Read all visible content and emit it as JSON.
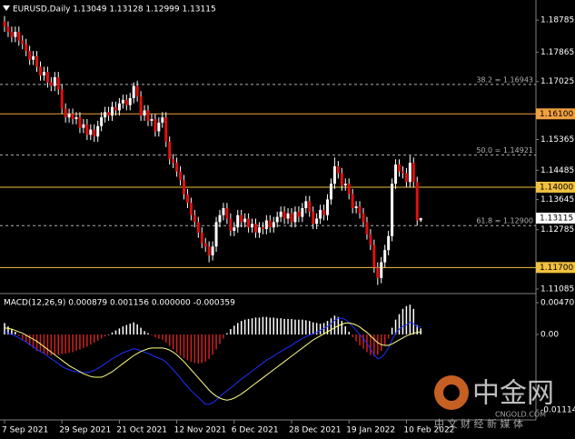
{
  "chart_data": [
    {
      "type": "candlestick",
      "header": "EURUSD,Daily  1.13049 1.13128 1.12999 1.13115",
      "ylim": [
        1.1098,
        1.1936
      ],
      "yticks": [
        1.18785,
        1.17865,
        1.17025,
        1.15365,
        1.14485,
        1.13645,
        1.12785,
        1.11085
      ],
      "up_color": "#ffffff",
      "down_color": "#e01010",
      "wick_color": "#ffffff",
      "categories": [
        "7 Sep 2021",
        null,
        null,
        null,
        null,
        null,
        null,
        null,
        null,
        null,
        null,
        null,
        null,
        null,
        null,
        null,
        "29 Sep 2021",
        null,
        null,
        null,
        null,
        null,
        null,
        null,
        null,
        null,
        null,
        null,
        null,
        null,
        null,
        null,
        "21 Oct 2021",
        null,
        null,
        null,
        null,
        null,
        null,
        null,
        null,
        null,
        null,
        null,
        null,
        null,
        null,
        null,
        "12 Nov 2021",
        null,
        null,
        null,
        null,
        null,
        null,
        null,
        null,
        null,
        null,
        null,
        null,
        null,
        null,
        null,
        "6 Dec 2021",
        null,
        null,
        null,
        null,
        null,
        null,
        null,
        null,
        null,
        null,
        null,
        null,
        null,
        null,
        null,
        "28 Dec 2021",
        null,
        null,
        null,
        null,
        null,
        null,
        null,
        null,
        null,
        null,
        null,
        null,
        null,
        null,
        null,
        "19 Jan 2022",
        null,
        null,
        null,
        null,
        null,
        null,
        null,
        null,
        null,
        null,
        null,
        null,
        null,
        null,
        null,
        "10 Feb 2022",
        null,
        null,
        null,
        null
      ],
      "open": [
        1.1875,
        1.186,
        1.1845,
        1.183,
        1.1845,
        1.182,
        1.181,
        1.179,
        1.1765,
        1.1775,
        1.1745,
        1.172,
        1.173,
        1.17,
        1.169,
        1.1715,
        1.168,
        1.1625,
        1.16,
        1.161,
        1.1595,
        1.16,
        1.157,
        1.158,
        1.155,
        1.1565,
        1.1545,
        1.1575,
        1.16,
        1.1615,
        1.1605,
        1.163,
        1.162,
        1.164,
        1.165,
        1.1635,
        1.1655,
        1.169,
        1.166,
        1.1605,
        1.162,
        1.159,
        1.1595,
        1.156,
        1.1585,
        1.16,
        1.153,
        1.148,
        1.147,
        1.1445,
        1.142,
        1.138,
        1.1355,
        1.132,
        1.13,
        1.127,
        1.124,
        1.123,
        1.1205,
        1.123,
        1.13,
        1.132,
        1.134,
        1.131,
        1.1275,
        1.1285,
        1.132,
        1.13,
        1.131,
        1.1285,
        1.1295,
        1.127,
        1.1285,
        1.128,
        1.1305,
        1.1285,
        1.13,
        1.1315,
        1.133,
        1.131,
        1.1325,
        1.13,
        1.133,
        1.1315,
        1.134,
        1.136,
        1.133,
        1.1295,
        1.131,
        1.1335,
        1.132,
        1.1365,
        1.141,
        1.146,
        1.144,
        1.1405,
        1.141,
        1.138,
        1.134,
        1.1345,
        1.1325,
        1.13,
        1.1265,
        1.1235,
        1.117,
        1.114,
        1.1185,
        1.122,
        1.126,
        1.141,
        1.1465,
        1.1445,
        1.144,
        1.1415,
        1.147,
        1.1415,
        1.13049
      ],
      "high": [
        1.189,
        1.1875,
        1.186,
        1.186,
        1.186,
        1.1835,
        1.1825,
        1.1805,
        1.179,
        1.179,
        1.176,
        1.1745,
        1.1745,
        1.1715,
        1.173,
        1.173,
        1.1695,
        1.164,
        1.1625,
        1.1625,
        1.1615,
        1.1615,
        1.1595,
        1.1595,
        1.158,
        1.158,
        1.159,
        1.1615,
        1.163,
        1.163,
        1.1645,
        1.1645,
        1.1655,
        1.1665,
        1.1665,
        1.167,
        1.17,
        1.1705,
        1.1675,
        1.1635,
        1.1635,
        1.161,
        1.161,
        1.16,
        1.1615,
        1.1615,
        1.1545,
        1.1495,
        1.1485,
        1.146,
        1.1435,
        1.1395,
        1.137,
        1.1335,
        1.1315,
        1.1285,
        1.1255,
        1.1245,
        1.1245,
        1.1315,
        1.1335,
        1.1355,
        1.1355,
        1.1325,
        1.13,
        1.1335,
        1.1335,
        1.1325,
        1.1325,
        1.131,
        1.131,
        1.13,
        1.13,
        1.132,
        1.132,
        1.1315,
        1.133,
        1.1345,
        1.1345,
        1.134,
        1.134,
        1.1345,
        1.1345,
        1.1355,
        1.1375,
        1.1375,
        1.1345,
        1.1325,
        1.135,
        1.135,
        1.138,
        1.1425,
        1.1485,
        1.1475,
        1.1455,
        1.1425,
        1.1425,
        1.1395,
        1.136,
        1.136,
        1.134,
        1.1315,
        1.128,
        1.125,
        1.1185,
        1.12,
        1.1235,
        1.1275,
        1.1425,
        1.148,
        1.148,
        1.146,
        1.1455,
        1.149,
        1.1485,
        1.143,
        1.13128
      ],
      "low": [
        1.1845,
        1.183,
        1.1815,
        1.1815,
        1.1805,
        1.1795,
        1.1775,
        1.175,
        1.175,
        1.173,
        1.1705,
        1.1705,
        1.1685,
        1.1675,
        1.1675,
        1.1665,
        1.161,
        1.1585,
        1.1585,
        1.158,
        1.158,
        1.1555,
        1.1555,
        1.1535,
        1.1535,
        1.153,
        1.153,
        1.156,
        1.1585,
        1.159,
        1.159,
        1.1605,
        1.1605,
        1.1625,
        1.162,
        1.162,
        1.164,
        1.1645,
        1.159,
        1.159,
        1.1575,
        1.1575,
        1.1545,
        1.1545,
        1.157,
        1.1515,
        1.1465,
        1.1455,
        1.143,
        1.1405,
        1.1365,
        1.134,
        1.1305,
        1.1285,
        1.1255,
        1.1225,
        1.1215,
        1.1185,
        1.119,
        1.1215,
        1.1285,
        1.1305,
        1.1295,
        1.126,
        1.126,
        1.127,
        1.1285,
        1.1285,
        1.127,
        1.127,
        1.1255,
        1.1255,
        1.1265,
        1.1265,
        1.127,
        1.127,
        1.1285,
        1.13,
        1.1295,
        1.1295,
        1.1285,
        1.1285,
        1.13,
        1.13,
        1.1325,
        1.1315,
        1.128,
        1.128,
        1.1295,
        1.1305,
        1.1305,
        1.135,
        1.1395,
        1.1425,
        1.139,
        1.139,
        1.1365,
        1.1325,
        1.1325,
        1.131,
        1.1285,
        1.125,
        1.122,
        1.1155,
        1.112,
        1.1125,
        1.117,
        1.1205,
        1.1245,
        1.1395,
        1.143,
        1.1425,
        1.14,
        1.14,
        1.14,
        1.129,
        1.12999
      ],
      "close": [
        1.186,
        1.1845,
        1.183,
        1.1845,
        1.182,
        1.181,
        1.179,
        1.1765,
        1.1775,
        1.1745,
        1.172,
        1.173,
        1.17,
        1.169,
        1.1715,
        1.168,
        1.1625,
        1.16,
        1.161,
        1.1595,
        1.16,
        1.157,
        1.158,
        1.155,
        1.1565,
        1.1545,
        1.1575,
        1.16,
        1.1615,
        1.1605,
        1.163,
        1.162,
        1.164,
        1.165,
        1.1635,
        1.1655,
        1.169,
        1.166,
        1.1605,
        1.162,
        1.159,
        1.1595,
        1.156,
        1.1585,
        1.16,
        1.153,
        1.148,
        1.147,
        1.1445,
        1.142,
        1.138,
        1.1355,
        1.132,
        1.13,
        1.127,
        1.124,
        1.123,
        1.1205,
        1.123,
        1.13,
        1.132,
        1.134,
        1.131,
        1.1275,
        1.1285,
        1.132,
        1.13,
        1.131,
        1.1285,
        1.1295,
        1.127,
        1.1285,
        1.128,
        1.1305,
        1.1285,
        1.13,
        1.1315,
        1.133,
        1.131,
        1.1325,
        1.13,
        1.133,
        1.1315,
        1.134,
        1.136,
        1.133,
        1.1295,
        1.131,
        1.1335,
        1.132,
        1.1365,
        1.141,
        1.146,
        1.144,
        1.1405,
        1.141,
        1.138,
        1.134,
        1.1345,
        1.1325,
        1.13,
        1.1265,
        1.1235,
        1.117,
        1.114,
        1.1185,
        1.122,
        1.126,
        1.141,
        1.1465,
        1.1445,
        1.144,
        1.1415,
        1.147,
        1.1415,
        1.1305,
        1.13115
      ],
      "levels": [
        {
          "value": 1.161,
          "label": "1.16100",
          "color": "#f0a040"
        },
        {
          "value": 1.14,
          "label": "1.14000",
          "color": "#f0c040"
        },
        {
          "value": 1.117,
          "label": "1.11700",
          "color": "#f0c040"
        }
      ],
      "fib_levels": [
        {
          "value": 1.16943,
          "label": "38.2 = 1.16943"
        },
        {
          "value": 1.14921,
          "label": "50.0 = 1.14921"
        },
        {
          "value": 1.129,
          "label": "61.8 = 1.12900"
        }
      ],
      "last_price": 1.13115
    },
    {
      "type": "macd",
      "title": "MACD(12,26,9) 0.000879 0.001156 0.000000 -0.000359",
      "ylim": [
        -0.01262,
        0.00578
      ],
      "yticks": [
        0.004701,
        {
          "value": 0,
          "label": "0.00"
        },
        -0.011143
      ],
      "histogram": {
        "up_color": "#ffffff",
        "down_color": "#d02020",
        "values": [
          0.0017,
          0.0012,
          0.0008,
          0.0004,
          -0.0002,
          -0.0008,
          -0.0012,
          -0.0016,
          -0.002,
          -0.0024,
          -0.0026,
          -0.0028,
          -0.003,
          -0.0031,
          -0.003,
          -0.003,
          -0.0029,
          -0.0028,
          -0.0027,
          -0.0026,
          -0.0024,
          -0.0022,
          -0.002,
          -0.0018,
          -0.0015,
          -0.0012,
          -0.0009,
          -0.0006,
          -0.0003,
          0.0,
          0.0003,
          0.0006,
          0.0009,
          0.0012,
          0.0014,
          0.0016,
          0.0018,
          0.0015,
          0.001,
          0.0005,
          0.0002,
          -0.0001,
          -0.0004,
          -0.0006,
          -0.0008,
          -0.0012,
          -0.0017,
          -0.0022,
          -0.0027,
          -0.0031,
          -0.0035,
          -0.0038,
          -0.004,
          -0.0042,
          -0.0043,
          -0.0042,
          -0.004,
          -0.0036,
          -0.003,
          -0.0022,
          -0.0014,
          -0.0006,
          0.0002,
          0.0008,
          0.0013,
          0.0017,
          0.002,
          0.0022,
          0.0023,
          0.0024,
          0.0025,
          0.0025,
          0.0026,
          0.0026,
          0.0025,
          0.0025,
          0.0024,
          0.0024,
          0.0023,
          0.0023,
          0.0023,
          0.0022,
          0.0022,
          0.0022,
          0.0021,
          0.002,
          0.0018,
          0.0017,
          0.0016,
          0.0017,
          0.002,
          0.0024,
          0.0028,
          0.0026,
          0.002,
          0.0012,
          0.0004,
          -0.0004,
          -0.001,
          -0.0016,
          -0.0021,
          -0.0026,
          -0.003,
          -0.0032,
          -0.003,
          -0.0024,
          -0.0016,
          -0.0006,
          0.001,
          0.0022,
          0.003,
          0.0038,
          0.0042,
          0.0044,
          0.0038,
          0.0014,
          0.0009
        ]
      },
      "series": [
        {
          "color": "#2030ff",
          "values": [
            0.0004,
            0.0002,
            0.0,
            -0.0002,
            -0.0005,
            -0.0008,
            -0.0011,
            -0.0015,
            -0.0018,
            -0.0022,
            -0.0025,
            -0.0028,
            -0.0032,
            -0.0036,
            -0.0039,
            -0.0043,
            -0.0047,
            -0.005,
            -0.0052,
            -0.0054,
            -0.0055,
            -0.0056,
            -0.0056,
            -0.0056,
            -0.0055,
            -0.0053,
            -0.005,
            -0.0047,
            -0.0043,
            -0.004,
            -0.0036,
            -0.0033,
            -0.003,
            -0.0027,
            -0.0025,
            -0.0023,
            -0.0021,
            -0.0022,
            -0.0024,
            -0.0026,
            -0.0028,
            -0.003,
            -0.0033,
            -0.0035,
            -0.0037,
            -0.0041,
            -0.0046,
            -0.0052,
            -0.0058,
            -0.0064,
            -0.0071,
            -0.0077,
            -0.0083,
            -0.0088,
            -0.0093,
            -0.0098,
            -0.0103,
            -0.0103,
            -0.0101,
            -0.0097,
            -0.0092,
            -0.0087,
            -0.0083,
            -0.0079,
            -0.0075,
            -0.007,
            -0.0066,
            -0.0062,
            -0.0058,
            -0.0054,
            -0.005,
            -0.0046,
            -0.0042,
            -0.0038,
            -0.0035,
            -0.0032,
            -0.0028,
            -0.0025,
            -0.0022,
            -0.0019,
            -0.0016,
            -0.0012,
            -0.0009,
            -0.0006,
            -0.0003,
            -0.0001,
            0.0001,
            0.0003,
            0.0006,
            0.0009,
            0.0012,
            0.0016,
            0.0021,
            0.0024,
            0.0024,
            0.0022,
            0.0018,
            0.0012,
            0.0006,
            0.0,
            -0.0006,
            -0.0013,
            -0.0021,
            -0.003,
            -0.0036,
            -0.0034,
            -0.0028,
            -0.002,
            -0.0008,
            0.0002,
            0.0008,
            0.0012,
            0.0014,
            0.0018,
            0.0016,
            0.0012,
            0.0011
          ]
        },
        {
          "color": "#ffff80",
          "values": [
            0.001,
            0.0009,
            0.0008,
            0.0006,
            0.0004,
            0.0002,
            -0.0001,
            -0.0004,
            -0.0007,
            -0.001,
            -0.0014,
            -0.0018,
            -0.0022,
            -0.0026,
            -0.003,
            -0.0034,
            -0.0038,
            -0.0042,
            -0.0046,
            -0.0049,
            -0.0052,
            -0.0055,
            -0.0058,
            -0.006,
            -0.0062,
            -0.0063,
            -0.0063,
            -0.0063,
            -0.0061,
            -0.0058,
            -0.0055,
            -0.0051,
            -0.0047,
            -0.0043,
            -0.0039,
            -0.0035,
            -0.0031,
            -0.0028,
            -0.0025,
            -0.0023,
            -0.0021,
            -0.002,
            -0.002,
            -0.002,
            -0.002,
            -0.0021,
            -0.0023,
            -0.0026,
            -0.003,
            -0.0035,
            -0.004,
            -0.0046,
            -0.0052,
            -0.0058,
            -0.0064,
            -0.007,
            -0.0076,
            -0.0082,
            -0.0087,
            -0.0091,
            -0.0094,
            -0.0096,
            -0.0097,
            -0.0096,
            -0.0094,
            -0.0091,
            -0.0088,
            -0.0084,
            -0.008,
            -0.0076,
            -0.0072,
            -0.0068,
            -0.0064,
            -0.006,
            -0.0056,
            -0.0052,
            -0.0048,
            -0.0044,
            -0.004,
            -0.0036,
            -0.0032,
            -0.0028,
            -0.0024,
            -0.002,
            -0.0016,
            -0.0012,
            -0.0008,
            -0.0005,
            -0.0002,
            0.0001,
            0.0004,
            0.0007,
            0.001,
            0.0013,
            0.0015,
            0.0017,
            0.0017,
            0.0016,
            0.0014,
            0.0011,
            0.0007,
            0.0003,
            -0.0002,
            -0.0007,
            -0.0012,
            -0.0015,
            -0.0016,
            -0.0016,
            -0.0014,
            -0.0011,
            -0.0008,
            -0.0005,
            -0.0002,
            0.0,
            0.0002,
            0.0003,
            0.0004
          ]
        }
      ]
    }
  ],
  "watermark": {
    "brand": "中金网",
    "site": "CNGOLD.COM",
    "slogan": "中 文 财 经 新 媒 体"
  }
}
